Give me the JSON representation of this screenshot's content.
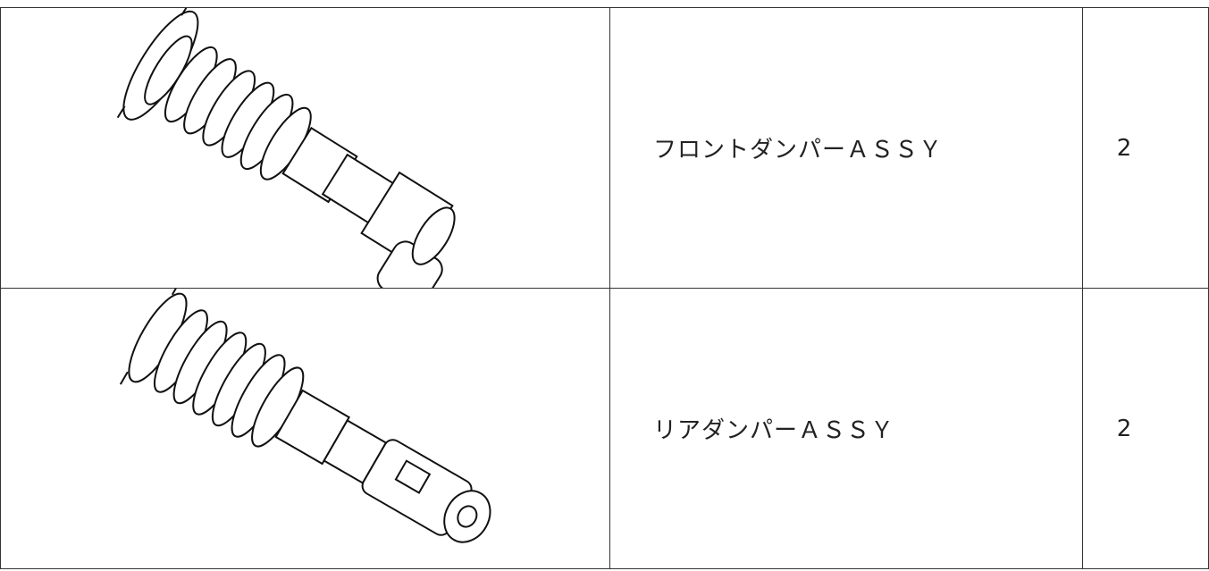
{
  "table": {
    "rows": [
      [
        "フロントダンパーＡＳＳＹ",
        "2"
      ],
      [
        "リアダンパーＡＳＳＹ",
        "2"
      ]
    ]
  }
}
